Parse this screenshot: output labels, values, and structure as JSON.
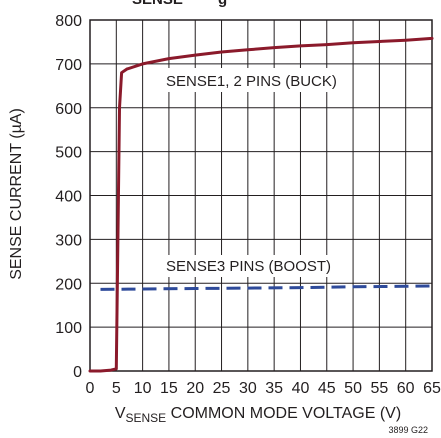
{
  "chart_data": {
    "type": "line",
    "title_partial": "SENSE vs ... g ...",
    "xlabel_prefix": "V",
    "xlabel_sub": "SENSE",
    "xlabel_rest": " COMMON MODE VOLTAGE (V)",
    "ylabel": "SENSE CURRENT (µA)",
    "xlim": [
      0,
      65
    ],
    "ylim": [
      0,
      800
    ],
    "x_ticks": [
      0,
      5,
      10,
      15,
      20,
      25,
      30,
      35,
      40,
      45,
      50,
      55,
      60,
      65
    ],
    "y_ticks": [
      0,
      100,
      200,
      300,
      400,
      500,
      600,
      700,
      800
    ],
    "grid": true,
    "figure_code": "3899 G22",
    "series": [
      {
        "name": "SENSE1, 2 PINS (BUCK)",
        "color": "#8b1a2b",
        "style": "solid",
        "x": [
          0,
          2,
          4,
          5,
          5.3,
          5.6,
          6,
          7,
          10,
          15,
          20,
          25,
          30,
          35,
          40,
          45,
          50,
          55,
          60,
          65
        ],
        "y": [
          0,
          0,
          2,
          5,
          300,
          600,
          680,
          688,
          700,
          712,
          720,
          727,
          732,
          737,
          741,
          744,
          748,
          751,
          754,
          758
        ]
      },
      {
        "name": "SENSE3 PINS (BOOST)",
        "color": "#2e4a9a",
        "style": "dashed",
        "x": [
          2,
          10,
          20,
          30,
          40,
          50,
          60,
          65
        ],
        "y": [
          186,
          187,
          188,
          189,
          190,
          192,
          193,
          194
        ]
      }
    ],
    "annotations": [
      {
        "text": "SENSE1, 2 PINS (BUCK)",
        "series": 0
      },
      {
        "text": "SENSE3 PINS (BOOST)",
        "series": 1
      }
    ]
  }
}
